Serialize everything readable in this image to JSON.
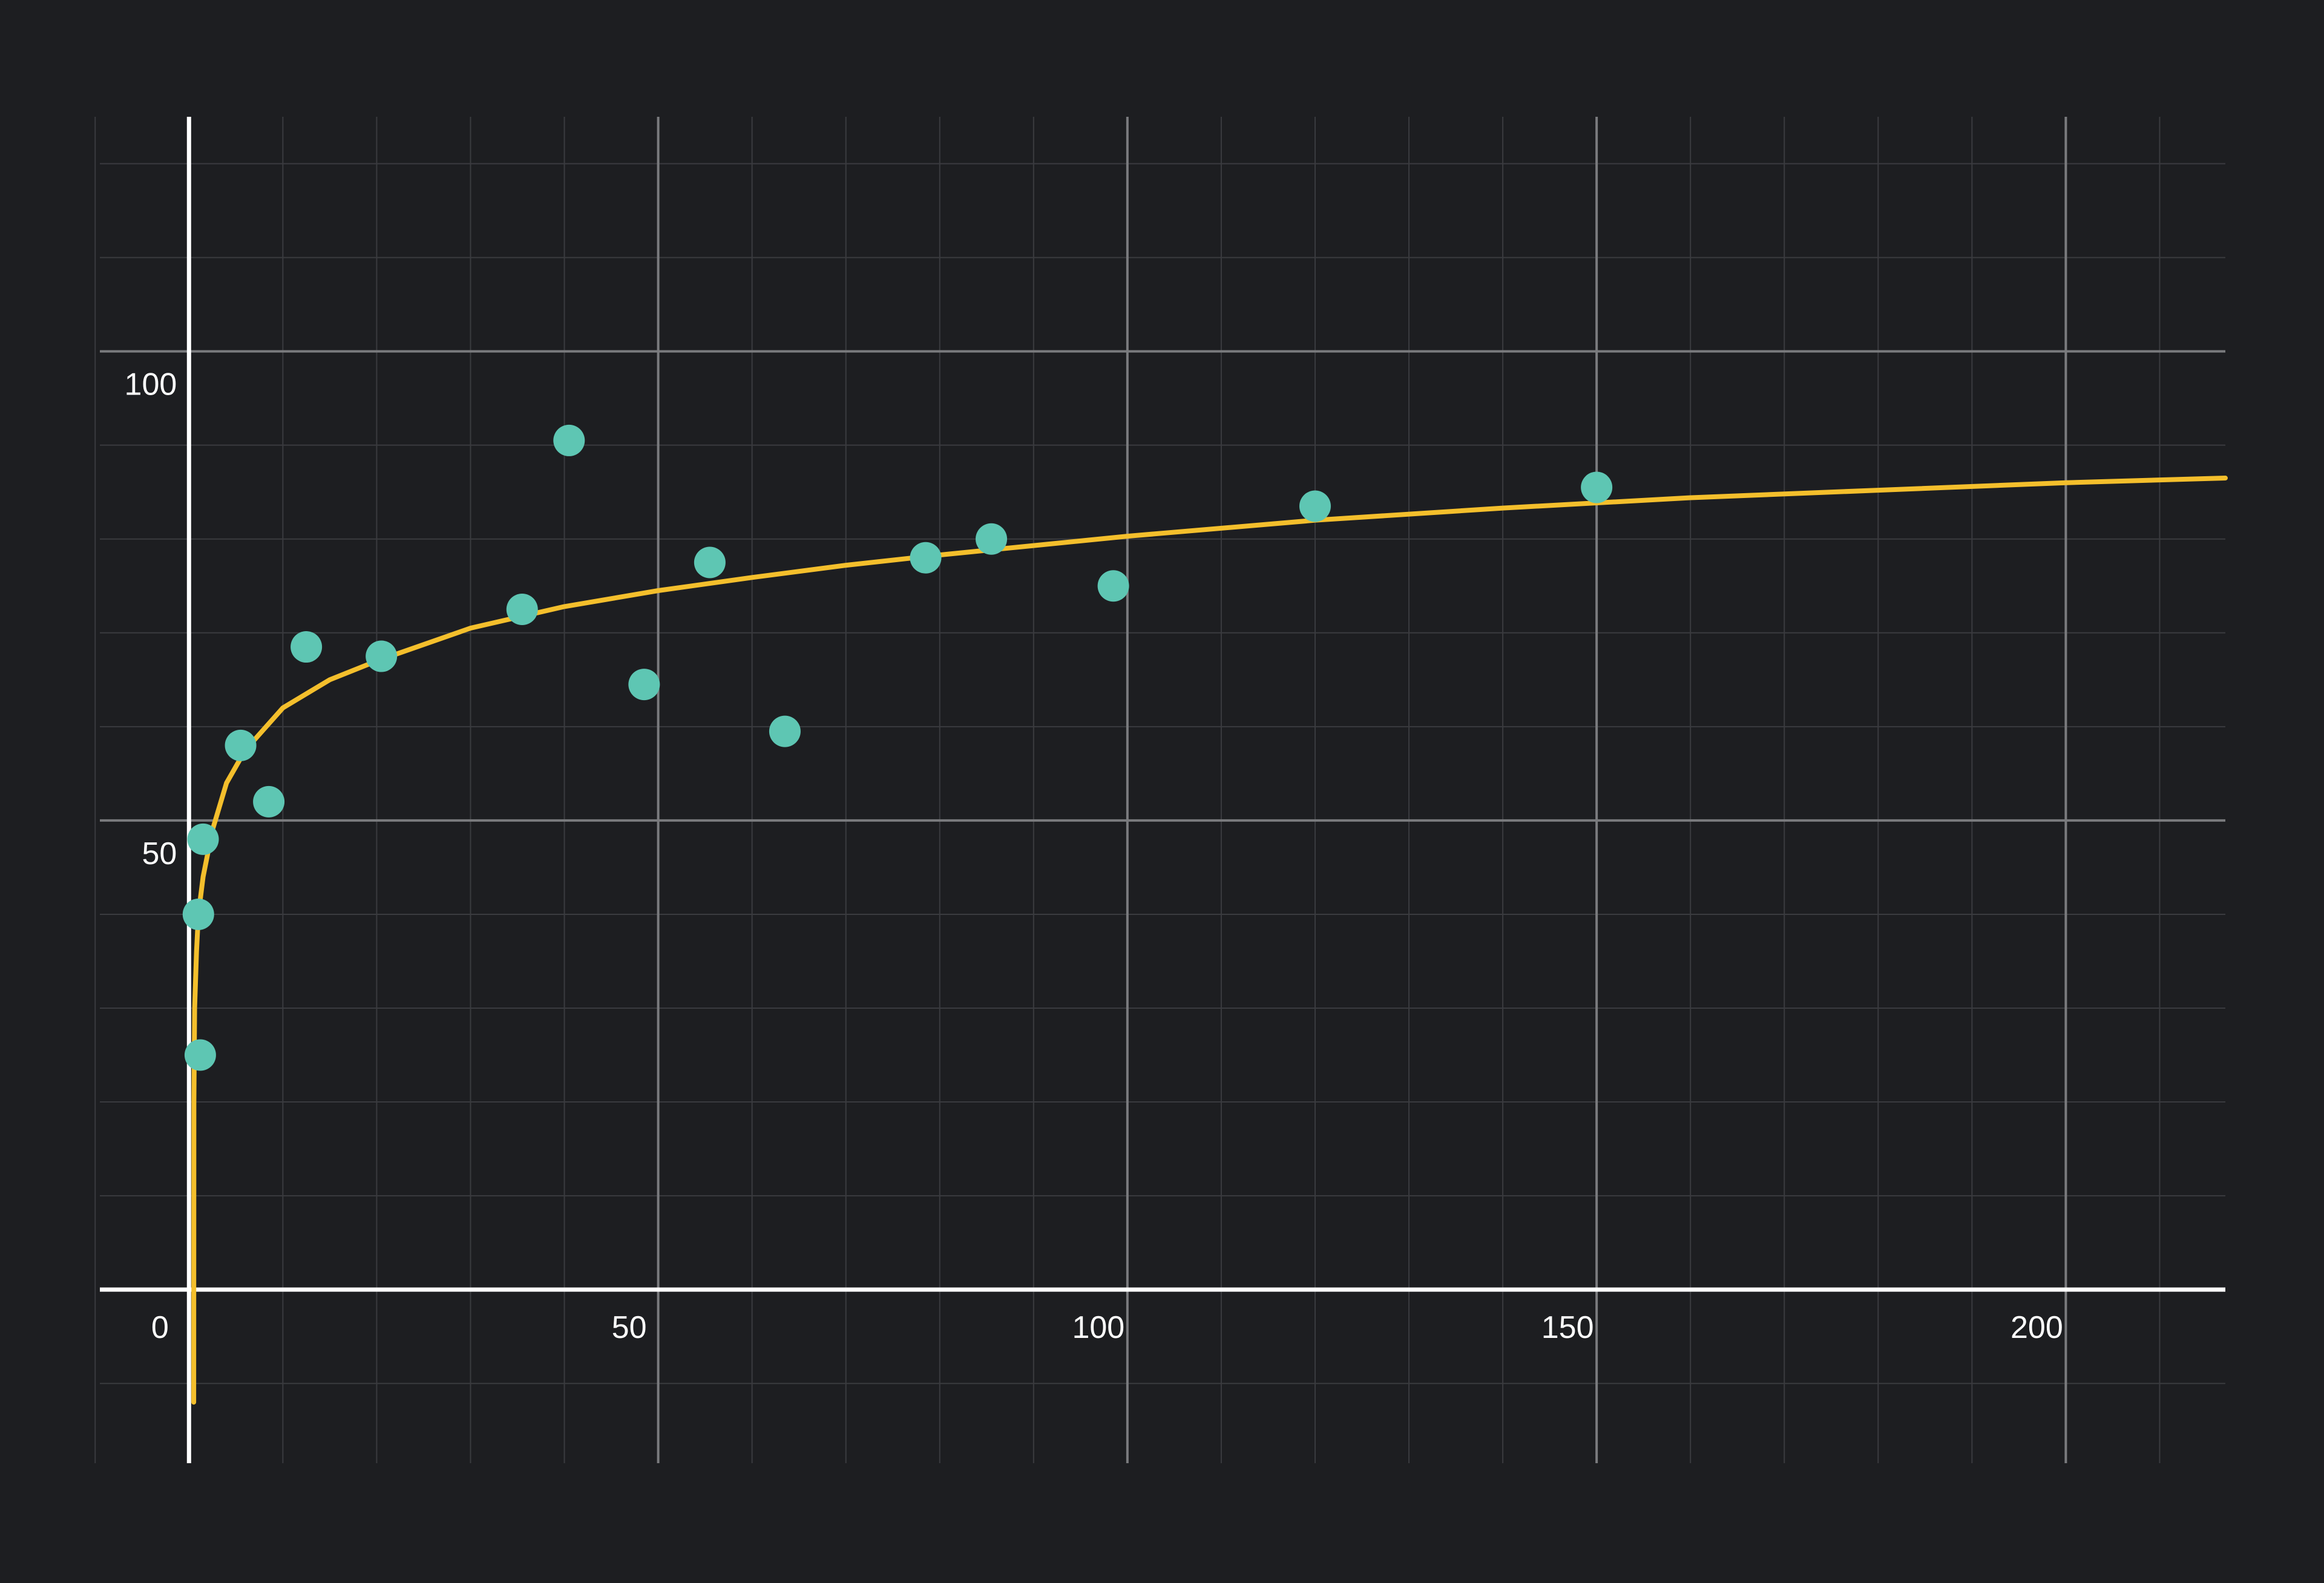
{
  "chart_data": {
    "type": "scatter",
    "title": "",
    "xlabel": "",
    "ylabel": "",
    "xlim": [
      -9.5,
      217
    ],
    "ylim": [
      -18.5,
      125
    ],
    "x_ticks": [
      0,
      50,
      100,
      150,
      200
    ],
    "y_ticks": [
      50,
      100
    ],
    "x_tick_labels": [
      "0",
      "50",
      "100",
      "150",
      "200"
    ],
    "y_tick_labels": [
      "50",
      "100"
    ],
    "grid": true,
    "legend": "none",
    "colors": {
      "background": "#1d1e21",
      "grid_minor": "#3a3b3f",
      "grid_major": "#7a7b7e",
      "axis": "#ffffff",
      "points": "#5ec6b3",
      "trend": "#f4bf2c"
    },
    "series": [
      {
        "type": "scatter",
        "points": [
          [
            1,
            40
          ],
          [
            1.2,
            25
          ],
          [
            1.5,
            48
          ],
          [
            5.5,
            58
          ],
          [
            8.5,
            52
          ],
          [
            12.5,
            68.5
          ],
          [
            20.5,
            67.5
          ],
          [
            35.5,
            72.5
          ],
          [
            40.5,
            90.5
          ],
          [
            48.5,
            64.5
          ],
          [
            55.5,
            77.5
          ],
          [
            63.5,
            59.5
          ],
          [
            78.5,
            78
          ],
          [
            85.5,
            80
          ],
          [
            98.5,
            75
          ],
          [
            120,
            83.5
          ],
          [
            150,
            85.5
          ]
        ]
      },
      {
        "type": "line",
        "points": [
          [
            0.5,
            -12
          ],
          [
            0.52,
            20
          ],
          [
            0.6,
            30
          ],
          [
            0.8,
            36
          ],
          [
            1,
            40
          ],
          [
            1.5,
            44
          ],
          [
            2.5,
            49
          ],
          [
            4,
            54
          ],
          [
            6,
            57.5
          ],
          [
            10,
            62
          ],
          [
            15,
            65
          ],
          [
            20,
            67
          ],
          [
            30,
            70.5
          ],
          [
            40,
            72.8
          ],
          [
            50,
            74.5
          ],
          [
            60,
            75.9
          ],
          [
            70,
            77.2
          ],
          [
            80,
            78.3
          ],
          [
            90,
            79.3
          ],
          [
            100,
            80.3
          ],
          [
            120,
            82
          ],
          [
            140,
            83.3
          ],
          [
            160,
            84.4
          ],
          [
            180,
            85.2
          ],
          [
            200,
            86
          ],
          [
            217,
            86.5
          ]
        ]
      }
    ]
  }
}
